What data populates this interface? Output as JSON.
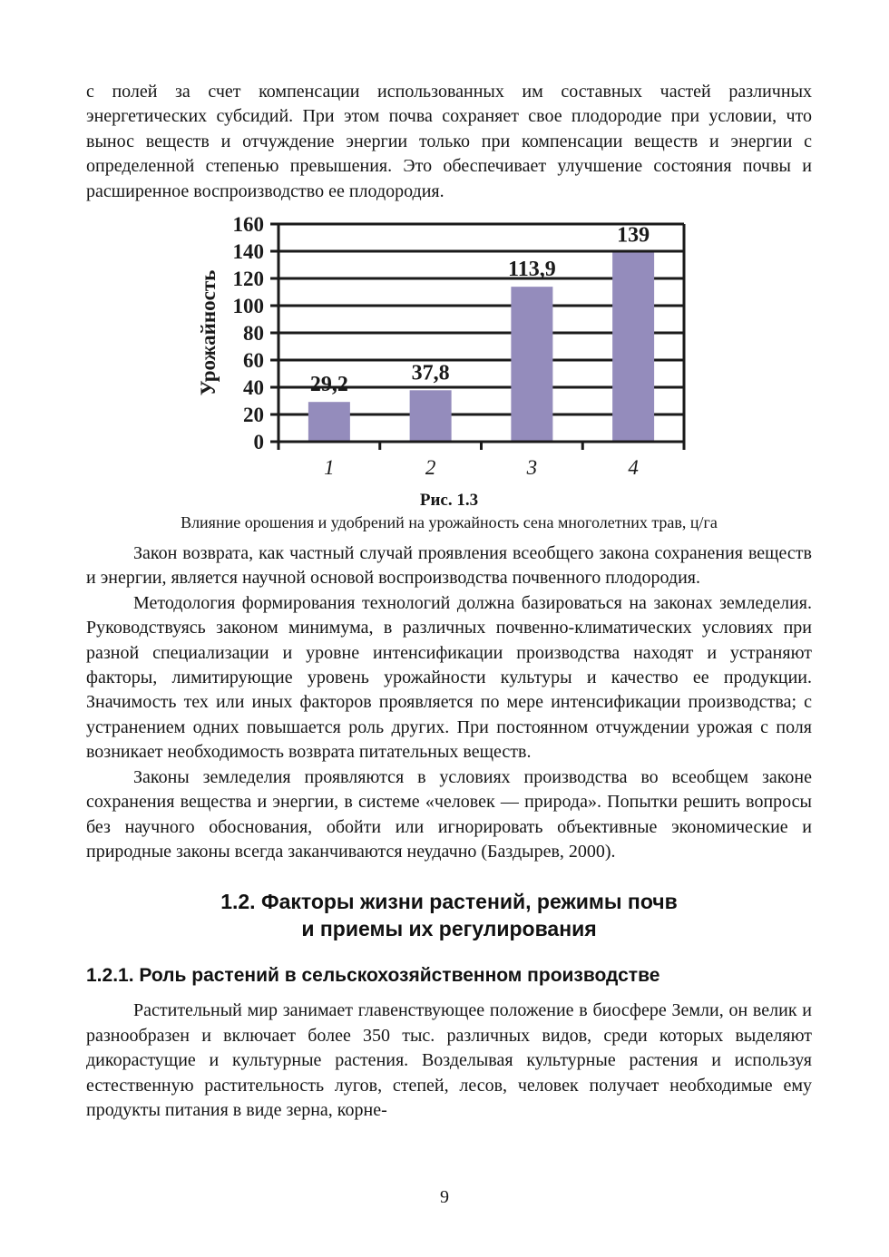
{
  "page": {
    "number": "9"
  },
  "paragraphs": {
    "p1": "с полей за счет компенсации использованных им составных частей различных энергетических субсидий. При этом почва сохраняет свое плодородие при условии, что вынос веществ и отчуждение энергии только при компенсации веществ и энергии с определенной степенью превышения. Это обеспечивает улучшение состояния почвы и расширенное воспроизводство ее плодородия.",
    "p2": "Закон возврата, как частный случай проявления всеобщего закона сохранения веществ и энергии, является научной основой воспроизводства почвенного плодородия.",
    "p3": "Методология формирования технологий должна базироваться на законах земледелия. Руководствуясь законом минимума, в различных почвенно-климатических условиях при разной специализации и уровне интенсификации производства находят и устраняют факторы, лимитирующие уровень урожайности культуры и качество ее продукции. Значимость тех или иных факторов проявляется по мере интенсификации производства; с устранением одних повышается роль других. При постоянном отчуждении урожая с поля возникает необходимость возврата питательных веществ.",
    "p4": "Законы земледелия проявляются в условиях производства во всеобщем законе сохранения вещества и энергии, в системе «человек — природа». Попытки решить вопросы без научного обоснования, обойти или игнорировать объективные экономические и природные законы всегда заканчиваются неудачно (Баздырев, 2000).",
    "p5": "Растительный мир занимает главенствующее положение в биосфере Земли, он велик и разнообразен и включает более 350 тыс. различных видов, среди которых выделяют дикорастущие и культурные растения. Возделывая культурные растения и используя естественную растительность лугов, степей, лесов, человек получает необходимые ему продукты питания в виде зерна, корне-"
  },
  "figure": {
    "label": "Рис. 1.3",
    "caption": "Влияние орошения и удобрений на урожайность сена многолетних трав, ц/га"
  },
  "chart_data": {
    "type": "bar",
    "categories": [
      "1",
      "2",
      "3",
      "4"
    ],
    "values": [
      29.2,
      37.8,
      113.9,
      139
    ],
    "value_labels": [
      "29,2",
      "37,8",
      "113,9",
      "139"
    ],
    "title": "",
    "xlabel": "",
    "ylabel": "Урожайность",
    "ylim": [
      0,
      160
    ],
    "y_ticks": [
      0,
      20,
      40,
      60,
      80,
      100,
      120,
      140,
      160
    ],
    "grid": true,
    "legend": false,
    "bar_color": "#948cbc",
    "axis_color": "#1a1a1a"
  },
  "headings": {
    "section": {
      "lines": [
        "1.2. Факторы жизни растений, режимы почв",
        "и приемы их регулирования"
      ]
    },
    "subsection": "1.2.1. Роль растений в сельскохозяйственном производстве"
  }
}
